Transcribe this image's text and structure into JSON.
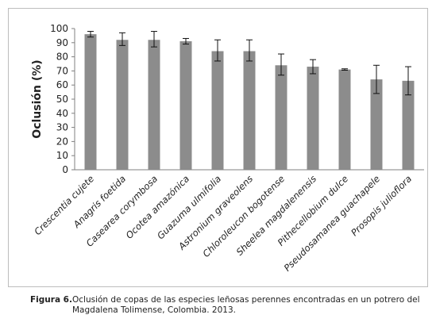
{
  "chart_data": {
    "type": "bar",
    "title": "",
    "xlabel": "",
    "ylabel": "Oclusión (%)",
    "ylim": [
      0,
      100
    ],
    "yticks": [
      0,
      10,
      20,
      30,
      40,
      50,
      60,
      70,
      80,
      90,
      100
    ],
    "grid": false,
    "legend": "none",
    "bar_color": "#8c8c8c",
    "categories": [
      "Crescentia cujete",
      "Anagris foetida",
      "Casearea corymbosa",
      "Ocotea amazónica",
      "Guazuma ulmifolia",
      "Astronium graveolens",
      "Chloroleucon bogotense",
      "Sheelea magdalenensis",
      "Pithecellobium dulce",
      "Pseudosamanea  guachapele",
      "Prosopis julioflora"
    ],
    "values": [
      96,
      92,
      92,
      91,
      84,
      84,
      74,
      73,
      71,
      64,
      63
    ],
    "error_low": [
      94,
      88,
      87,
      89,
      77,
      77,
      67,
      68,
      70.5,
      54,
      53
    ],
    "error_high": [
      98,
      97,
      98,
      93,
      92,
      92,
      82,
      78,
      71.5,
      74,
      73
    ]
  },
  "caption": {
    "label": "Figura 6.",
    "text": "Oclusión de copas de las especies leñosas perennes encontradas en un potrero del Magdalena Tolimense, Colombia. 2013."
  }
}
